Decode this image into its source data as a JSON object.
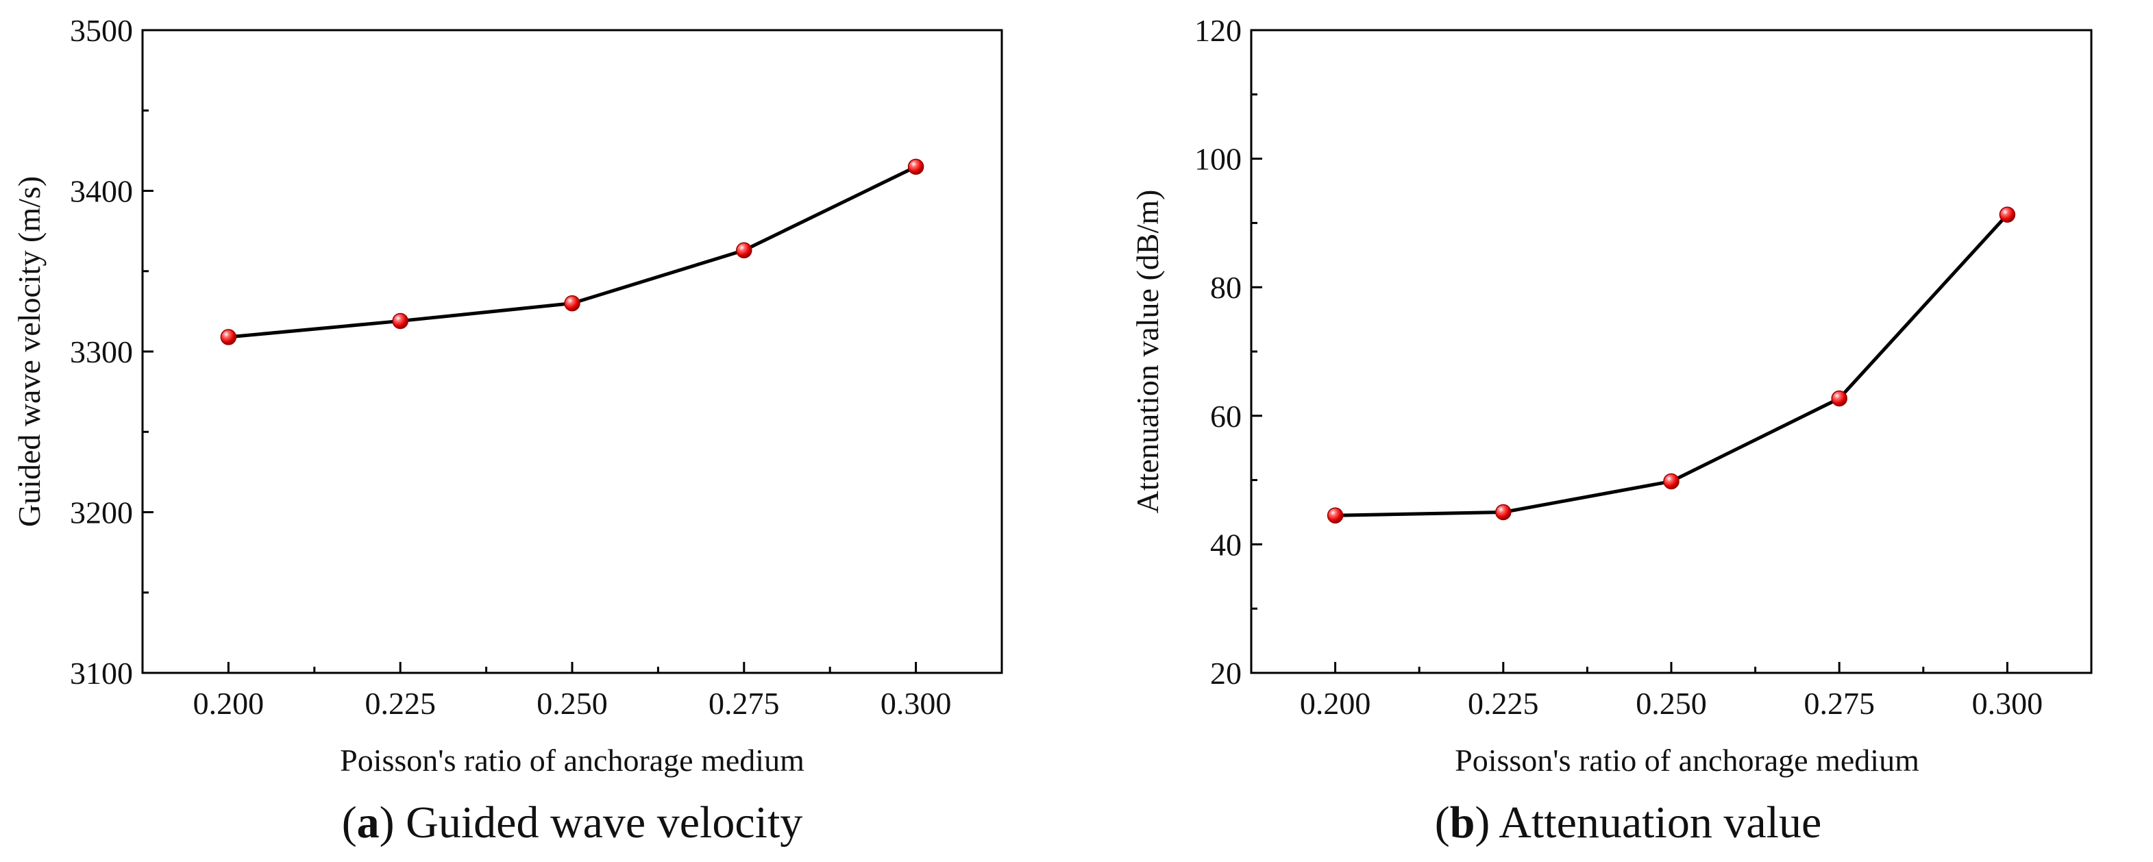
{
  "figure": {
    "subfigures": [
      {
        "caption": {
          "open": "(",
          "letter": "a",
          "close": ")",
          "text": " Guided wave velocity"
        }
      },
      {
        "caption": {
          "open": "(",
          "letter": "b",
          "close": ")",
          "text": " Attenuation value"
        }
      }
    ],
    "colors": {
      "line": "#000000",
      "marker": "#e60000",
      "axis": "#000000"
    }
  },
  "chart_data": [
    {
      "type": "line",
      "title": "",
      "xlabel": "Poisson's ratio of anchorage medium",
      "ylabel": "Guided wave velocity (m/s)",
      "x": [
        0.2,
        0.225,
        0.25,
        0.275,
        0.3
      ],
      "x_tick_labels": [
        "0.200",
        "0.225",
        "0.250",
        "0.275",
        "0.300"
      ],
      "xlim": [
        0.1875,
        0.3125
      ],
      "ylim": [
        3100,
        3500
      ],
      "y_ticks": [
        3100,
        3200,
        3300,
        3400,
        3500
      ],
      "y_tick_labels": [
        "3100",
        "3200",
        "3300",
        "3400",
        "3500"
      ],
      "series": [
        {
          "name": "Guided wave velocity",
          "values": [
            3309,
            3319,
            3330,
            3363,
            3415
          ]
        }
      ],
      "grid": false
    },
    {
      "type": "line",
      "title": "",
      "xlabel": "Poisson's ratio of anchorage medium",
      "ylabel": "Attenuation value (dB/m)",
      "x": [
        0.2,
        0.225,
        0.25,
        0.275,
        0.3
      ],
      "x_tick_labels": [
        "0.200",
        "0.225",
        "0.250",
        "0.275",
        "0.300"
      ],
      "xlim": [
        0.1875,
        0.3125
      ],
      "ylim": [
        20,
        120
      ],
      "y_ticks": [
        20,
        40,
        60,
        80,
        100,
        120
      ],
      "y_tick_labels": [
        "20",
        "40",
        "60",
        "80",
        "100",
        "120"
      ],
      "series": [
        {
          "name": "Attenuation value",
          "values": [
            44.5,
            45.0,
            49.8,
            62.7,
            91.3
          ]
        }
      ],
      "grid": false
    }
  ]
}
